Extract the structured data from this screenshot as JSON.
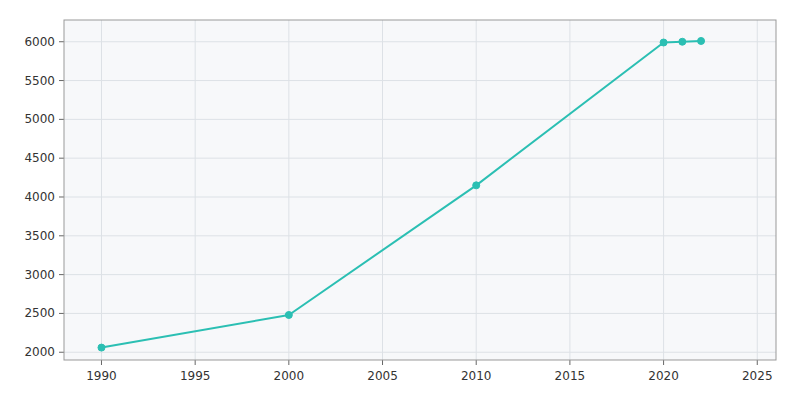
{
  "chart_data": {
    "type": "line",
    "x": [
      1990,
      2000,
      2010,
      2020,
      2021,
      2022
    ],
    "values": [
      2060,
      2480,
      4150,
      5990,
      6000,
      6010
    ],
    "color": "#2bbfb3",
    "marker": "circle",
    "xlim": [
      1988,
      2026
    ],
    "ylim": [
      1900,
      6280
    ],
    "xticks": [
      1990,
      1995,
      2000,
      2005,
      2010,
      2015,
      2020,
      2025
    ],
    "yticks": [
      2000,
      2500,
      3000,
      3500,
      4000,
      4500,
      5000,
      5500,
      6000
    ],
    "grid": true
  }
}
